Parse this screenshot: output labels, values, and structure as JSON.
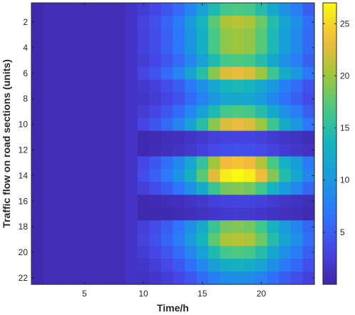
{
  "chart_data": {
    "type": "heatmap",
    "title": "",
    "xlabel": "Time/h",
    "ylabel": "Traffic flow on road sections (units)",
    "x_range": [
      1,
      24
    ],
    "y_range": [
      1,
      22
    ],
    "x_ticks": [
      5,
      10,
      15,
      20
    ],
    "y_ticks": [
      2,
      4,
      6,
      8,
      10,
      12,
      14,
      16,
      18,
      20,
      22
    ],
    "y_reversed": true,
    "grid": false,
    "colormap": "parula",
    "colorbar": {
      "range": [
        0,
        27
      ],
      "ticks": [
        5,
        10,
        15,
        20,
        25
      ],
      "placement": "right"
    },
    "profile": [
      0.3,
      0.8,
      0.8,
      0.8,
      0.8,
      0.8,
      0.8,
      0.8,
      1.5,
      2.5,
      3.5,
      4.8,
      6.5,
      9,
      12,
      15.5,
      18,
      18.5,
      18,
      16,
      13,
      10,
      8,
      5.5
    ],
    "row_peaks": [
      17,
      21,
      20,
      20,
      17,
      23,
      14,
      12,
      17,
      23,
      3,
      4,
      24,
      27,
      19,
      3,
      2,
      19,
      21,
      17,
      13,
      9
    ]
  }
}
